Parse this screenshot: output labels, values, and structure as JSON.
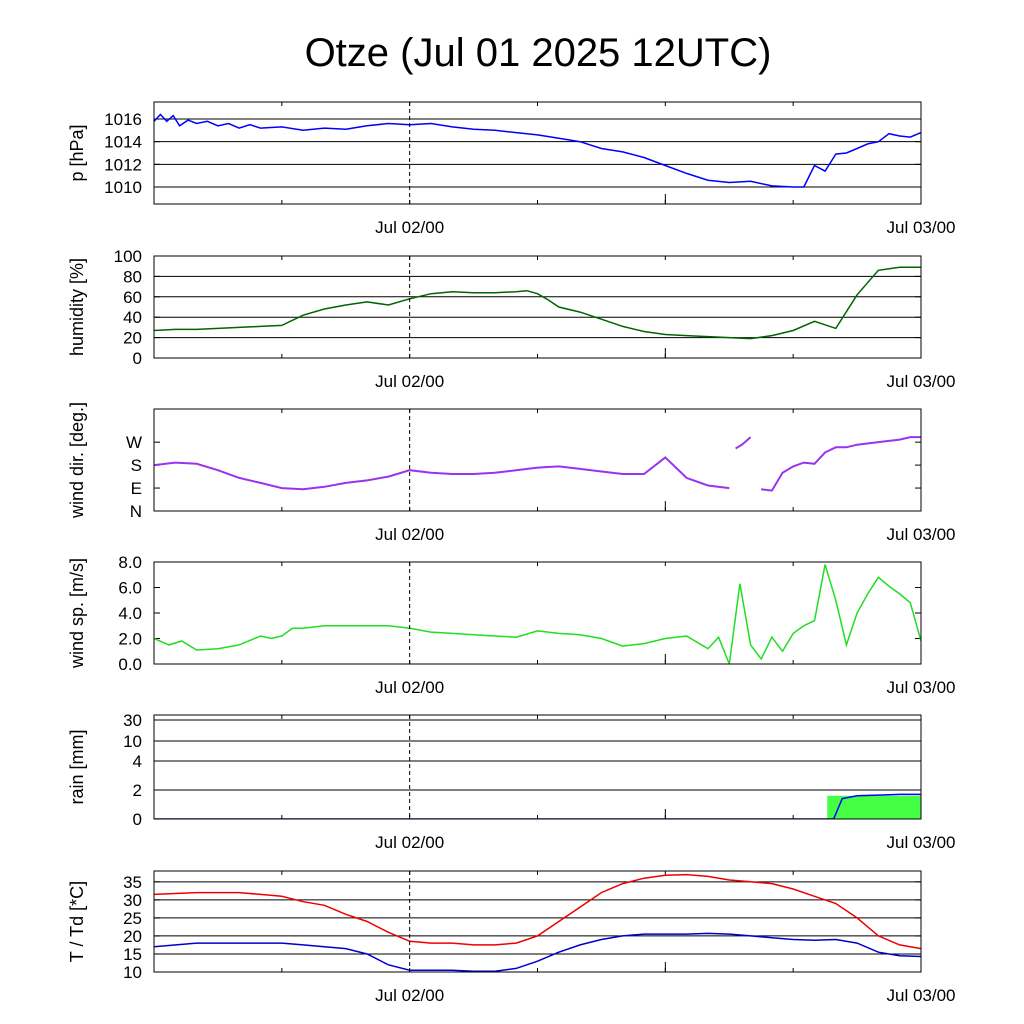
{
  "title": "Otze (Jul 01 2025 12UTC)",
  "chart_data": [
    {
      "id": "pressure",
      "type": "line",
      "ylabel": "p [hPa]",
      "ylim": [
        1008.5,
        1017.5
      ],
      "yticks": [
        1010,
        1012,
        1014,
        1016
      ],
      "ytick_labels": [
        "1010",
        "1012",
        "1014",
        "1016"
      ],
      "grid": true,
      "xlim": [
        0,
        36
      ],
      "xticks": [
        12,
        36
      ],
      "xtick_labels": [
        "Jul 02/00",
        "Jul 03/00"
      ],
      "series": [
        {
          "color": "#0000ff",
          "x": [
            0,
            0.3,
            0.6,
            0.9,
            1.2,
            1.6,
            2,
            2.5,
            3,
            3.5,
            4,
            4.5,
            5,
            6,
            7,
            8,
            9,
            10,
            11,
            12,
            13,
            14,
            15,
            16,
            17,
            18,
            19,
            20,
            21,
            22,
            23,
            24,
            25,
            26,
            27,
            28,
            29,
            30,
            30.5,
            31,
            31.5,
            32,
            32.5,
            33,
            33.5,
            34,
            34.5,
            35,
            35.5,
            36
          ],
          "y": [
            1015.8,
            1016.4,
            1015.8,
            1016.3,
            1015.4,
            1015.9,
            1015.6,
            1015.8,
            1015.4,
            1015.6,
            1015.2,
            1015.5,
            1015.2,
            1015.3,
            1015.0,
            1015.2,
            1015.1,
            1015.4,
            1015.6,
            1015.5,
            1015.6,
            1015.3,
            1015.1,
            1015.0,
            1014.8,
            1014.6,
            1014.3,
            1014.0,
            1013.4,
            1013.1,
            1012.6,
            1011.9,
            1011.2,
            1010.6,
            1010.4,
            1010.5,
            1010.1,
            1010.0,
            1010.0,
            1011.9,
            1011.4,
            1012.9,
            1013.0,
            1013.4,
            1013.8,
            1014.0,
            1014.7,
            1014.5,
            1014.4,
            1014.8
          ]
        }
      ]
    },
    {
      "id": "humidity",
      "type": "line",
      "ylabel": "humidity [%]",
      "ylim": [
        0,
        100
      ],
      "yticks": [
        0,
        20,
        40,
        60,
        80,
        100
      ],
      "ytick_labels": [
        "0",
        "20",
        "40",
        "60",
        "80",
        "100"
      ],
      "grid": true,
      "xlim": [
        0,
        36
      ],
      "xticks": [
        12,
        36
      ],
      "xtick_labels": [
        "Jul 02/00",
        "Jul 03/00"
      ],
      "series": [
        {
          "color": "#006400",
          "x": [
            0,
            1,
            2,
            3,
            4,
            5,
            6,
            7,
            8,
            9,
            10,
            11,
            12,
            13,
            14,
            15,
            16,
            17,
            17.5,
            18,
            18.5,
            19,
            20,
            21,
            22,
            23,
            24,
            25,
            26,
            27,
            28,
            29,
            30,
            31,
            32,
            33,
            34,
            35,
            36
          ],
          "y": [
            27,
            28,
            28,
            29,
            30,
            31,
            32,
            42,
            48,
            52,
            55,
            52,
            58,
            63,
            65,
            64,
            64,
            65,
            66,
            63,
            57,
            50,
            45,
            38,
            31,
            26,
            23,
            22,
            21,
            20,
            19,
            22,
            27,
            36,
            29,
            62,
            86,
            89,
            89
          ]
        }
      ]
    },
    {
      "id": "wind-direction",
      "type": "scatter",
      "ylabel": "wind dir. [deg.]",
      "ylim": [
        0,
        400
      ],
      "yticks": [
        0,
        90,
        180,
        270
      ],
      "ytick_labels": [
        "N",
        "E",
        "S",
        "W"
      ],
      "grid": false,
      "xlim": [
        0,
        36
      ],
      "xticks": [
        12,
        36
      ],
      "xtick_labels": [
        "Jul 02/00",
        "Jul 03/00"
      ],
      "series": [
        {
          "color": "#9933ee",
          "x": [
            0,
            1,
            2,
            3,
            4,
            5,
            6,
            7,
            8,
            9,
            10,
            11,
            12,
            13,
            14,
            15,
            16,
            17,
            18,
            19,
            20,
            21,
            22,
            23,
            24,
            25,
            26,
            27,
            27.3,
            27.6,
            28,
            28.5,
            29,
            29.5,
            30,
            30.5,
            31,
            31.5,
            32,
            32.5,
            33,
            34,
            35,
            35.5,
            36
          ],
          "y": [
            180,
            190,
            185,
            160,
            130,
            110,
            90,
            85,
            95,
            110,
            120,
            135,
            160,
            150,
            145,
            145,
            150,
            160,
            170,
            175,
            165,
            155,
            145,
            145,
            210,
            130,
            100,
            90,
            245,
            260,
            290,
            85,
            80,
            150,
            175,
            190,
            185,
            230,
            250,
            250,
            260,
            270,
            280,
            290,
            290
          ]
        }
      ]
    },
    {
      "id": "wind-speed",
      "type": "line",
      "ylabel": "wind sp. [m/s]",
      "ylim": [
        0,
        8
      ],
      "yticks": [
        0,
        2,
        4,
        6,
        8
      ],
      "ytick_labels": [
        "0.0",
        "2.0",
        "4.0",
        "6.0",
        "8.0"
      ],
      "grid": false,
      "xlim": [
        0,
        36
      ],
      "xticks": [
        12,
        36
      ],
      "xtick_labels": [
        "Jul 02/00",
        "Jul 03/00"
      ],
      "series": [
        {
          "color": "#22dd22",
          "x": [
            0,
            0.7,
            1.3,
            2,
            3,
            4,
            5,
            5.5,
            6,
            6.5,
            7,
            8,
            9,
            10,
            11,
            12,
            13,
            14,
            15,
            16,
            17,
            18,
            19,
            20,
            21,
            22,
            23,
            24,
            25,
            26,
            26.5,
            27,
            27.5,
            28,
            28.5,
            29,
            29.5,
            30,
            30.5,
            31,
            31.5,
            32,
            32.5,
            33,
            33.5,
            34,
            34.5,
            35,
            35.5,
            36
          ],
          "y": [
            2.0,
            1.5,
            1.8,
            1.1,
            1.2,
            1.5,
            2.2,
            2.0,
            2.2,
            2.8,
            2.8,
            3.0,
            3.0,
            3.0,
            3.0,
            2.8,
            2.5,
            2.4,
            2.3,
            2.2,
            2.1,
            2.6,
            2.4,
            2.3,
            2.0,
            1.4,
            1.6,
            2.0,
            2.2,
            1.2,
            2.1,
            0.0,
            6.3,
            1.5,
            0.4,
            2.1,
            1.0,
            2.4,
            3.0,
            3.4,
            7.8,
            5.0,
            1.5,
            4.0,
            5.5,
            6.8,
            6.1,
            5.5,
            4.8,
            1.8
          ]
        }
      ]
    },
    {
      "id": "rain",
      "type": "area",
      "ylabel": "rain [mm]",
      "ylim": [
        0,
        40
      ],
      "yticks": [
        0,
        2,
        4,
        10,
        30
      ],
      "ytick_labels": [
        "0",
        "2",
        "4",
        "10",
        "30"
      ],
      "grid": true,
      "xlim": [
        0,
        36
      ],
      "xticks": [
        12,
        36
      ],
      "xtick_labels": [
        "Jul 02/00",
        "Jul 03/00"
      ],
      "series": [
        {
          "color": "#44ff44",
          "kind": "bar",
          "x": [
            31.6,
            36
          ],
          "y": [
            1.6,
            1.6
          ]
        },
        {
          "color": "#0000ff",
          "kind": "line",
          "x": [
            0,
            31.9,
            32.3,
            33,
            35,
            36
          ],
          "y": [
            0,
            0,
            1.4,
            1.6,
            1.7,
            1.7
          ]
        }
      ]
    },
    {
      "id": "temperature",
      "type": "line",
      "ylabel": "T / Td [*C]",
      "ylim": [
        10,
        38
      ],
      "yticks": [
        10,
        15,
        20,
        25,
        30,
        35
      ],
      "ytick_labels": [
        "10",
        "15",
        "20",
        "25",
        "30",
        "35"
      ],
      "grid": true,
      "xlim": [
        0,
        36
      ],
      "xticks": [
        12,
        36
      ],
      "xtick_labels": [
        "Jul 02/00",
        "Jul 03/00"
      ],
      "series": [
        {
          "name": "T",
          "color": "#ee0000",
          "x": [
            0,
            2,
            4,
            5,
            6,
            7,
            8,
            9,
            10,
            11,
            12,
            13,
            14,
            15,
            16,
            17,
            18,
            19,
            20,
            21,
            22,
            23,
            24,
            25,
            26,
            27,
            28,
            29,
            30,
            31,
            32,
            33,
            34,
            35,
            36
          ],
          "y": [
            31.5,
            32,
            32,
            31.5,
            31,
            29.5,
            28.5,
            26,
            24,
            21,
            18.5,
            18,
            18,
            17.5,
            17.5,
            18,
            20,
            24,
            28,
            32,
            34.5,
            36,
            36.8,
            37,
            36.5,
            35.5,
            35,
            34.5,
            33,
            31,
            29,
            25,
            20,
            17.5,
            16.5
          ]
        },
        {
          "name": "Td",
          "color": "#0000cc",
          "x": [
            0,
            2,
            4,
            5,
            6,
            7,
            8,
            9,
            10,
            11,
            12,
            13,
            14,
            15,
            16,
            17,
            18,
            19,
            20,
            21,
            22,
            23,
            24,
            25,
            26,
            27,
            28,
            29,
            30,
            31,
            32,
            33,
            34,
            35,
            36
          ],
          "y": [
            17,
            18,
            18,
            18,
            18,
            17.5,
            17,
            16.5,
            15,
            12,
            10.5,
            10.5,
            10.5,
            10.2,
            10.2,
            11,
            13,
            15.5,
            17.5,
            19,
            20,
            20.5,
            20.5,
            20.5,
            20.7,
            20.5,
            20,
            19.5,
            19,
            18.8,
            19,
            18,
            15.5,
            14.5,
            14.3
          ]
        }
      ]
    }
  ]
}
